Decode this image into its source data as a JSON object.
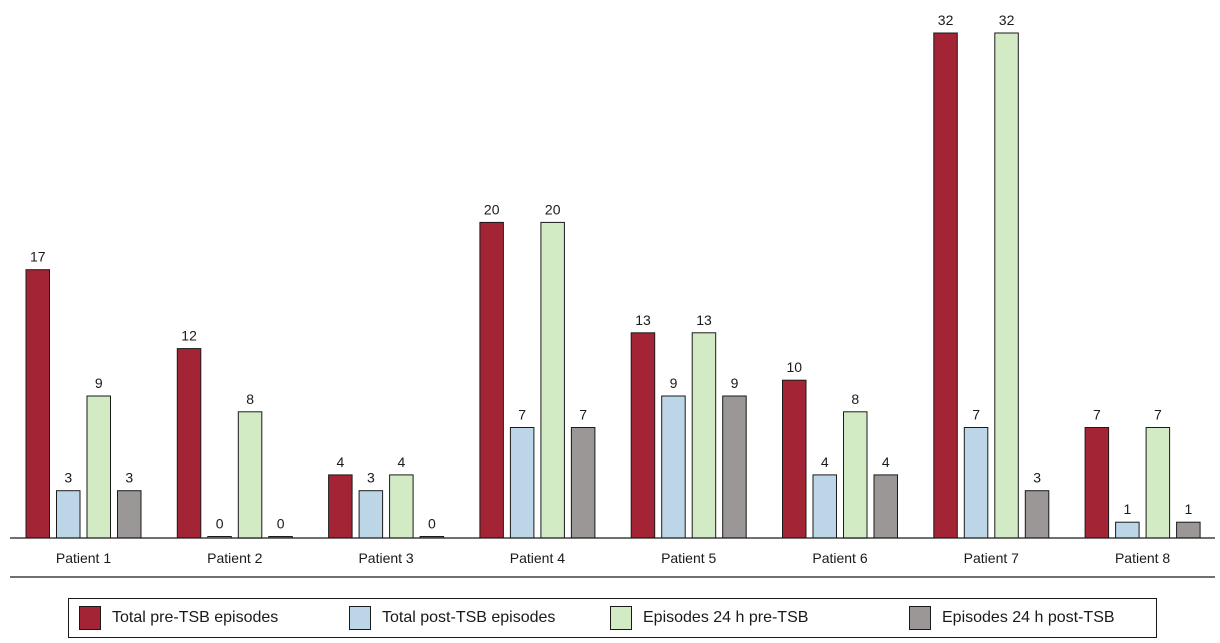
{
  "chart_data": {
    "type": "bar",
    "categories": [
      "Patient 1",
      "Patient 2",
      "Patient 3",
      "Patient 4",
      "Patient 5",
      "Patient 6",
      "Patient 7",
      "Patient 8"
    ],
    "series": [
      {
        "name": "Total pre-TSB episodes",
        "color": "#a32535",
        "values": [
          17,
          12,
          4,
          20,
          13,
          10,
          32,
          7
        ]
      },
      {
        "name": "Total post-TSB episodes",
        "color": "#bcd6e8",
        "values": [
          3,
          0,
          3,
          7,
          9,
          4,
          7,
          1
        ]
      },
      {
        "name": "Episodes 24 h pre-TSB",
        "color": "#d2ebc5",
        "values": [
          9,
          8,
          4,
          20,
          13,
          8,
          32,
          7
        ]
      },
      {
        "name": "Episodes 24 h post-TSB",
        "color": "#9a9796",
        "values": [
          3,
          0,
          0,
          7,
          9,
          4,
          3,
          1
        ]
      }
    ],
    "ylim": [
      0,
      33
    ],
    "data_labels": true,
    "legend_position": "bottom",
    "grid": false
  }
}
